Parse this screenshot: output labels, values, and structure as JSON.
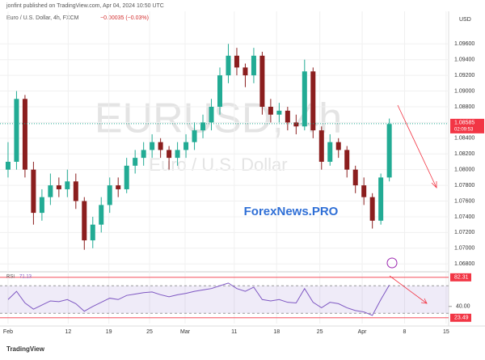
{
  "chart_data": {
    "type": "candlestick",
    "header": "jonfint published on TradingView.com, Apr 04, 2024 10:50 UTC",
    "symbol_title": "Euro / U.S. Dollar, 4h, FXCM",
    "change": "−0.00035 (−0.03%)",
    "watermark": "EURUSD, 4h",
    "watermark_sub": "Euro / U.S. Dollar",
    "brand": "ForexNews.PRO",
    "currency": "USD",
    "footer": "TradingView",
    "up_color": "#22ab94",
    "down_color": "#8b1e1e",
    "ohlc": [
      [
        1.08,
        1.0835,
        1.079,
        1.081
      ],
      [
        1.081,
        1.09,
        1.08,
        1.089
      ],
      [
        1.089,
        1.0895,
        1.079,
        1.08
      ],
      [
        1.08,
        1.081,
        1.073,
        1.0745
      ],
      [
        1.0745,
        1.0775,
        1.0735,
        1.0765
      ],
      [
        1.0765,
        1.0795,
        1.0755,
        1.078
      ],
      [
        1.078,
        1.079,
        1.0765,
        1.0775
      ],
      [
        1.0775,
        1.08,
        1.0765,
        1.0785
      ],
      [
        1.0785,
        1.0795,
        1.075,
        1.076
      ],
      [
        1.076,
        1.0765,
        1.0698,
        1.071
      ],
      [
        1.071,
        1.074,
        1.07,
        1.073
      ],
      [
        1.073,
        1.0765,
        1.072,
        1.0755
      ],
      [
        1.0755,
        1.079,
        1.0745,
        1.078
      ],
      [
        1.078,
        1.079,
        1.0765,
        1.0775
      ],
      [
        1.0775,
        1.0815,
        1.077,
        1.0805
      ],
      [
        1.0805,
        1.0825,
        1.0795,
        1.0815
      ],
      [
        1.0815,
        1.0835,
        1.0805,
        1.0825
      ],
      [
        1.0825,
        1.0845,
        1.0815,
        1.0835
      ],
      [
        1.0835,
        1.084,
        1.0815,
        1.0825
      ],
      [
        1.0825,
        1.083,
        1.08,
        1.0815
      ],
      [
        1.0815,
        1.0835,
        1.0805,
        1.0825
      ],
      [
        1.0825,
        1.0845,
        1.0815,
        1.0835
      ],
      [
        1.0835,
        1.086,
        1.0825,
        1.085
      ],
      [
        1.085,
        1.087,
        1.084,
        1.086
      ],
      [
        1.086,
        1.089,
        1.085,
        1.088
      ],
      [
        1.088,
        1.093,
        1.087,
        1.092
      ],
      [
        1.092,
        1.096,
        1.091,
        1.0945
      ],
      [
        1.0945,
        1.0955,
        1.092,
        1.093
      ],
      [
        1.093,
        1.0935,
        1.0905,
        1.092
      ],
      [
        1.092,
        1.0955,
        1.091,
        1.0945
      ],
      [
        1.0945,
        1.095,
        1.087,
        1.088
      ],
      [
        1.088,
        1.089,
        1.086,
        1.087
      ],
      [
        1.087,
        1.0885,
        1.086,
        1.0875
      ],
      [
        1.0875,
        1.088,
        1.085,
        1.086
      ],
      [
        1.086,
        1.087,
        1.0845,
        1.0855
      ],
      [
        1.0855,
        1.094,
        1.085,
        1.0925
      ],
      [
        1.0925,
        1.093,
        1.084,
        1.085
      ],
      [
        1.085,
        1.0855,
        1.08,
        1.081
      ],
      [
        1.081,
        1.0845,
        1.0805,
        1.0835
      ],
      [
        1.0835,
        1.084,
        1.0815,
        1.0825
      ],
      [
        1.0825,
        1.083,
        1.079,
        1.08
      ],
      [
        1.08,
        1.0805,
        1.077,
        1.078
      ],
      [
        1.078,
        1.079,
        1.0755,
        1.0765
      ],
      [
        1.0765,
        1.077,
        1.0725,
        1.0735
      ],
      [
        1.0735,
        1.0795,
        1.073,
        1.079
      ],
      [
        1.079,
        1.0865,
        1.0785,
        1.0858
      ]
    ],
    "ylim": [
      1.0672,
      1.0985
    ],
    "yticks": [
      {
        "value": 1.068,
        "label": "1.06800"
      },
      {
        "value": 1.07,
        "label": "1.07000"
      },
      {
        "value": 1.072,
        "label": "1.07200"
      },
      {
        "value": 1.074,
        "label": "1.07400"
      },
      {
        "value": 1.076,
        "label": "1.07600"
      },
      {
        "value": 1.078,
        "label": "1.07800"
      },
      {
        "value": 1.08,
        "label": "1.08000"
      },
      {
        "value": 1.082,
        "label": "1.08200"
      },
      {
        "value": 1.084,
        "label": "1.08400"
      },
      {
        "value": 1.086,
        "label": "1.08600"
      },
      {
        "value": 1.088,
        "label": "1.08800"
      },
      {
        "value": 1.09,
        "label": "1.09000"
      },
      {
        "value": 1.092,
        "label": "1.09200"
      },
      {
        "value": 1.094,
        "label": "1.09400"
      },
      {
        "value": 1.096,
        "label": "1.09600"
      }
    ],
    "last_price": {
      "value": 1.08585,
      "label": "1.08585"
    },
    "countdown": "02:09:53",
    "xlim": [
      -0.95,
      52
    ],
    "xticks": [
      {
        "value": 0,
        "label": "Feb"
      },
      {
        "value": 7.1,
        "label": "12"
      },
      {
        "value": 11.9,
        "label": "19"
      },
      {
        "value": 16.7,
        "label": "25"
      },
      {
        "value": 20.9,
        "label": "Mar"
      },
      {
        "value": 26.7,
        "label": "11"
      },
      {
        "value": 31.7,
        "label": "18"
      },
      {
        "value": 36.8,
        "label": "25"
      },
      {
        "value": 41.8,
        "label": "Apr"
      },
      {
        "value": 46.8,
        "label": "8"
      },
      {
        "value": 51.7,
        "label": "15"
      }
    ],
    "rsi": {
      "name": "RSI",
      "color": "#7e57c2",
      "values": [
        50,
        62,
        45,
        36,
        42,
        48,
        47,
        50,
        44,
        33,
        40,
        46,
        52,
        50,
        56,
        58,
        60,
        61,
        57,
        54,
        57,
        59,
        62,
        64,
        66,
        70,
        74,
        66,
        62,
        68,
        50,
        48,
        50,
        46,
        45,
        66,
        46,
        38,
        46,
        44,
        38,
        34,
        32,
        27,
        50,
        71.13
      ],
      "ylim": [
        15,
        88
      ],
      "bands": [
        30,
        70
      ],
      "yticks": [
        {
          "value": 82.31,
          "label": "82.31"
        },
        {
          "value": 40,
          "label": "40.00"
        },
        {
          "value": 23.49,
          "label": "23.49"
        }
      ]
    }
  }
}
